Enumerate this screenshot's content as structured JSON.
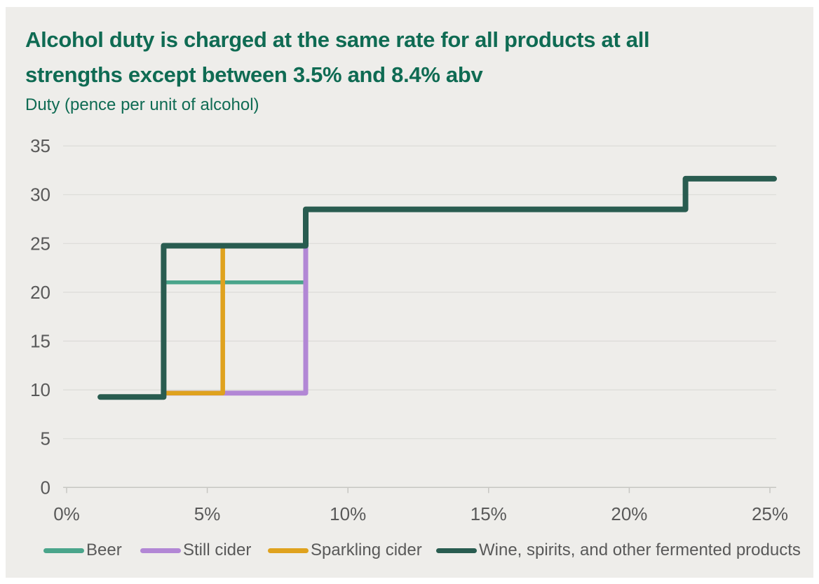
{
  "page": {
    "background_color": "#ffffff",
    "card_background_color": "#eeedea"
  },
  "header": {
    "title_lines": [
      "Alcohol duty is charged at the same rate for all products at all",
      "strengths except between 3.5% and 8.4% abv"
    ],
    "title_full": "Alcohol duty is charged at the same rate for all products at all strengths except between 3.5% and 8.4% abv",
    "title_color": "#0f6b53",
    "subtitle": "Duty (pence per unit of alcohol)",
    "subtitle_color": "#0f6b53"
  },
  "axis_style": {
    "tick_text_color": "#595959",
    "grid_color": "#dcdbd8",
    "axis_line_color": "#c7c6c2"
  },
  "chart_data": {
    "type": "line",
    "subtype": "step",
    "title": "Alcohol duty is charged at the same rate for all products at all strengths except between 3.5% and 8.4% abv",
    "ylabel": "Duty (pence per unit of alcohol)",
    "x_unit": "% abv",
    "y_unit": "pence per unit of alcohol",
    "xlim": [
      0,
      25.5
    ],
    "ylim": [
      0,
      35
    ],
    "grid": true,
    "legend_position": "bottom",
    "xtick_values": [
      0,
      5,
      10,
      15,
      20,
      25
    ],
    "xtick_labels": [
      "0%",
      "5%",
      "10%",
      "15%",
      "20%",
      "25%"
    ],
    "ytick_values": [
      0,
      5,
      10,
      15,
      20,
      25,
      30,
      35
    ],
    "ytick_labels": [
      "0",
      "5",
      "10",
      "15",
      "20",
      "25",
      "30",
      "35"
    ],
    "series": [
      {
        "name": "Beer",
        "color": "#4aa58b",
        "points": [
          [
            3.45,
            21.01
          ],
          [
            8.5,
            21.01
          ]
        ]
      },
      {
        "name": "Still cider",
        "color": "#b287d5",
        "points": [
          [
            3.45,
            9.67
          ],
          [
            8.5,
            9.67
          ],
          [
            8.5,
            28.5
          ]
        ]
      },
      {
        "name": "Sparkling cider",
        "color": "#dfa21e",
        "points": [
          [
            3.45,
            9.67
          ],
          [
            5.55,
            9.67
          ],
          [
            5.55,
            24.77
          ]
        ]
      },
      {
        "name": "Wine, spirits, and other fermented products",
        "color": "#295c50",
        "points": [
          [
            1.2,
            9.27
          ],
          [
            3.45,
            9.27
          ],
          [
            3.45,
            24.77
          ],
          [
            8.5,
            24.77
          ],
          [
            8.5,
            28.5
          ],
          [
            22,
            28.5
          ],
          [
            22,
            31.64
          ],
          [
            25.15,
            31.64
          ]
        ]
      }
    ]
  }
}
